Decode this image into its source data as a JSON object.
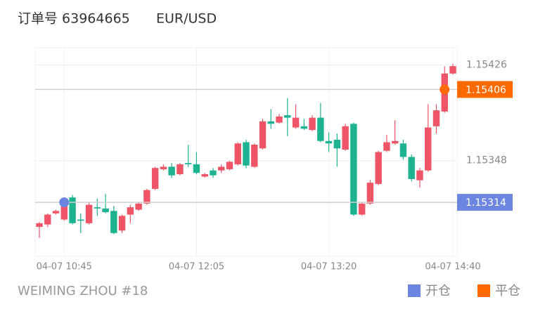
{
  "title": "订单号 63964665",
  "symbol": "EUR/USD",
  "footer": "WEIMING ZHOU #18",
  "chart_data": {
    "type": "candlestick",
    "categories": [
      null,
      null,
      null,
      "04-07 10:45",
      null,
      null,
      null,
      null,
      null,
      null,
      null,
      null,
      null,
      null,
      null,
      null,
      null,
      null,
      null,
      "04-07 12:05",
      null,
      null,
      null,
      null,
      null,
      null,
      null,
      null,
      null,
      null,
      null,
      null,
      null,
      null,
      null,
      "04-07 13:20",
      null,
      null,
      null,
      null,
      null,
      null,
      null,
      null,
      null,
      null,
      null,
      null,
      null,
      null,
      "04-07 14:40"
    ],
    "open": [
      1.15294,
      1.15296,
      1.15305,
      1.153,
      1.15318,
      1.153,
      1.15297,
      1.1531,
      1.15309,
      1.15307,
      1.15291,
      1.15304,
      1.15308,
      1.15313,
      1.15325,
      1.15341,
      1.15343,
      1.15337,
      1.15346,
      1.15345,
      1.15335,
      1.1534,
      1.1534,
      1.15341,
      1.15345,
      1.15363,
      1.15343,
      1.15358,
      1.1538,
      1.15379,
      1.15385,
      1.15375,
      1.15376,
      1.15373,
      1.15383,
      1.15364,
      1.15365,
      1.15357,
      1.15378,
      1.15304,
      1.15313,
      1.15329,
      1.15356,
      1.15362,
      1.15362,
      1.15351,
      1.15332,
      1.1534,
      1.15376,
      1.15388,
      1.15419
    ],
    "high": [
      1.15298,
      1.15305,
      1.15308,
      1.15318,
      1.1532,
      1.15305,
      1.15314,
      1.15317,
      1.15321,
      1.15311,
      1.15304,
      1.15312,
      1.15314,
      1.15325,
      1.15343,
      1.15345,
      1.15346,
      1.15346,
      1.15361,
      1.15355,
      1.15338,
      1.15342,
      1.15345,
      1.15348,
      1.15363,
      1.15365,
      1.15362,
      1.15382,
      1.1539,
      1.15386,
      1.15399,
      1.15394,
      1.15382,
      1.15385,
      1.15395,
      1.15371,
      1.1537,
      1.15378,
      1.15379,
      1.15314,
      1.15332,
      1.15356,
      1.15369,
      1.15381,
      1.15365,
      1.15353,
      1.15342,
      1.15394,
      1.15394,
      1.15425,
      1.15427
    ],
    "low": [
      1.15285,
      1.15294,
      1.15304,
      1.15299,
      1.15296,
      1.15289,
      1.15296,
      1.15303,
      1.15305,
      1.15288,
      1.15289,
      1.15297,
      1.15307,
      1.15312,
      1.15324,
      1.1534,
      1.15334,
      1.15336,
      1.15343,
      1.15337,
      1.15334,
      1.15334,
      1.15338,
      1.1534,
      1.15344,
      1.15342,
      1.15342,
      1.15357,
      1.15374,
      1.15378,
      1.15368,
      1.15374,
      1.15373,
      1.15372,
      1.15363,
      1.15355,
      1.15343,
      1.15356,
      1.15303,
      1.15303,
      1.15312,
      1.15328,
      1.15355,
      1.15361,
      1.15349,
      1.15331,
      1.15326,
      1.15339,
      1.1537,
      1.15387,
      1.15418
    ],
    "close": [
      1.15297,
      1.15304,
      1.15307,
      1.15314,
      1.15297,
      1.15299,
      1.15312,
      1.15309,
      1.15306,
      1.15289,
      1.15303,
      1.1531,
      1.15313,
      1.15324,
      1.15342,
      1.15343,
      1.15336,
      1.15345,
      1.15345,
      1.15338,
      1.15337,
      1.15336,
      1.15343,
      1.15347,
      1.15362,
      1.15344,
      1.15361,
      1.1538,
      1.15378,
      1.15384,
      1.15383,
      1.15383,
      1.15374,
      1.15383,
      1.15364,
      1.15362,
      1.15358,
      1.15376,
      1.15304,
      1.15313,
      1.1533,
      1.15355,
      1.15363,
      1.15364,
      1.15351,
      1.15333,
      1.1534,
      1.15375,
      1.15389,
      1.15419,
      1.15425
    ],
    "up_color": "#ef5567",
    "down_color": "#1db391",
    "ylim": [
      1.1527,
      1.1544
    ],
    "yticks": [
      1.15426,
      1.15348
    ],
    "grid": true,
    "entry": {
      "name": "开仓",
      "price": 1.15314,
      "index": 3,
      "color": "#6b85e0"
    },
    "exit": {
      "name": "平仓",
      "price": 1.15406,
      "index": 49,
      "color": "#ff6a00"
    }
  }
}
